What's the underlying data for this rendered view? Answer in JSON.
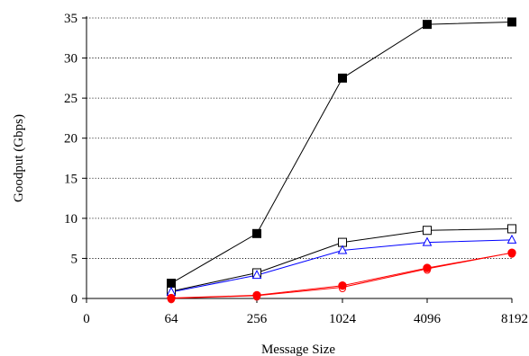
{
  "chart_data": {
    "type": "line",
    "title": "",
    "xlabel": "Message Size",
    "ylabel": "Goodput (Gbps)",
    "x_tick_labels": [
      "0",
      "64",
      "256",
      "1024",
      "4096",
      "8192"
    ],
    "y_ticks": [
      0,
      5,
      10,
      15,
      20,
      25,
      30,
      35
    ],
    "ylim": [
      0,
      35
    ],
    "grid": "horizontal dotted",
    "legend": "none",
    "categories": [
      "64",
      "256",
      "1024",
      "4096",
      "8192"
    ],
    "series": [
      {
        "marker": "filled-square",
        "color": "#000000",
        "values": [
          1.9,
          8.1,
          27.5,
          34.2,
          34.5
        ]
      },
      {
        "marker": "open-square",
        "color": "#000000",
        "values": [
          0.9,
          3.2,
          7.0,
          8.5,
          8.7
        ]
      },
      {
        "marker": "open-triangle",
        "color": "#0000ff",
        "values": [
          0.8,
          2.9,
          6.0,
          7.0,
          7.3
        ]
      },
      {
        "marker": "filled-circle",
        "color": "#ff0000",
        "values": [
          0.05,
          0.4,
          1.6,
          3.8,
          5.7
        ]
      },
      {
        "marker": "open-circle",
        "color": "#ff0000",
        "values": [
          0.02,
          0.35,
          1.4,
          3.7,
          5.7
        ]
      }
    ]
  }
}
